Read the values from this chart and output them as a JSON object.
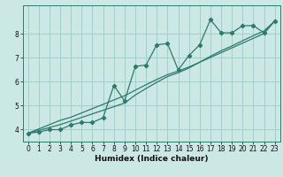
{
  "xlabel": "Humidex (Indice chaleur)",
  "bg_color": "#cce8e4",
  "grid_color": "#99cccc",
  "line_color": "#2d7a6e",
  "x_data": [
    0,
    1,
    2,
    3,
    4,
    5,
    6,
    7,
    8,
    9,
    10,
    11,
    12,
    13,
    14,
    15,
    16,
    17,
    18,
    19,
    20,
    21,
    22,
    23
  ],
  "y_humidex": [
    3.85,
    3.9,
    4.0,
    4.0,
    4.2,
    4.3,
    4.3,
    4.5,
    5.85,
    5.2,
    6.65,
    6.7,
    7.55,
    7.6,
    6.5,
    7.1,
    7.55,
    8.6,
    8.05,
    8.05,
    8.35,
    8.35,
    8.05,
    8.55
  ],
  "y_linear1": [
    3.85,
    4.03,
    4.21,
    4.39,
    4.52,
    4.7,
    4.88,
    5.06,
    5.24,
    5.42,
    5.65,
    5.88,
    6.1,
    6.3,
    6.45,
    6.62,
    6.82,
    7.02,
    7.22,
    7.42,
    7.62,
    7.82,
    8.02,
    8.55
  ],
  "y_linear2": [
    3.85,
    3.97,
    4.09,
    4.21,
    4.36,
    4.51,
    4.66,
    4.81,
    4.96,
    5.11,
    5.45,
    5.72,
    5.98,
    6.22,
    6.38,
    6.58,
    6.82,
    7.07,
    7.3,
    7.5,
    7.72,
    7.93,
    8.13,
    8.55
  ],
  "xlim": [
    -0.5,
    23.5
  ],
  "ylim": [
    3.5,
    9.2
  ],
  "yticks": [
    4,
    5,
    6,
    7,
    8
  ],
  "xticks": [
    0,
    1,
    2,
    3,
    4,
    5,
    6,
    7,
    8,
    9,
    10,
    11,
    12,
    13,
    14,
    15,
    16,
    17,
    18,
    19,
    20,
    21,
    22,
    23
  ],
  "tick_fontsize": 5.5,
  "label_fontsize": 6.5
}
